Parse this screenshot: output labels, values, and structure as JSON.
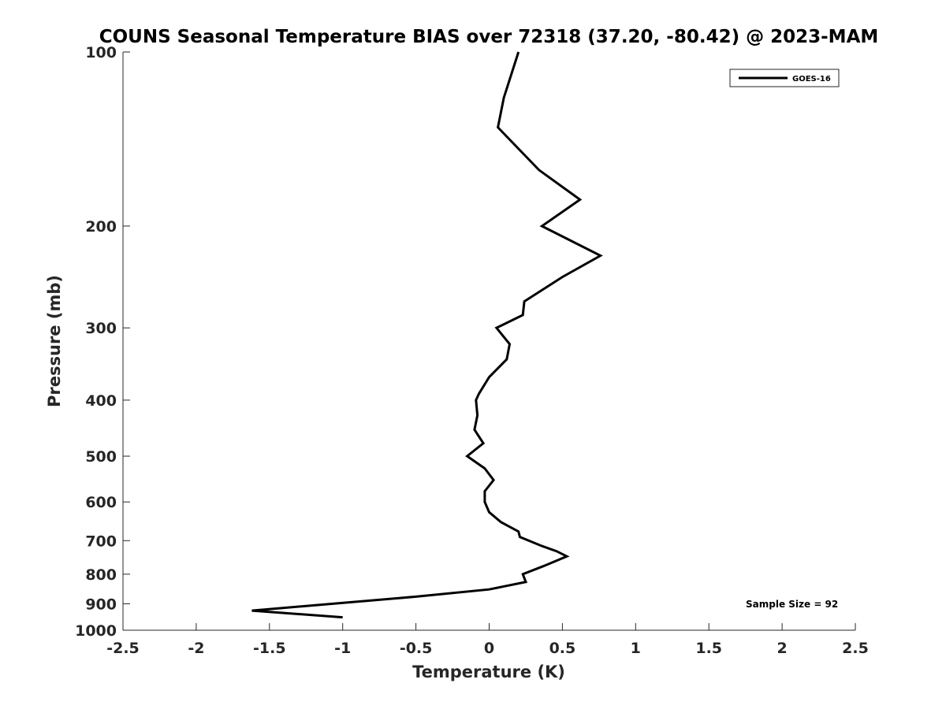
{
  "chart_data": {
    "type": "line",
    "title": "COUNS Seasonal Temperature BIAS over 72318 (37.20, -80.42) @ 2023-MAM",
    "xlabel": "Temperature (K)",
    "ylabel": "Pressure (mb)",
    "xlim": [
      -2.5,
      2.5
    ],
    "ylim": [
      1000,
      100
    ],
    "y_scale": "log",
    "y_reversed": true,
    "x_ticks": [
      "-2.5",
      "-2",
      "-1.5",
      "-1",
      "-0.5",
      "0",
      "0.5",
      "1",
      "1.5",
      "2",
      "2.5"
    ],
    "x_tick_values": [
      -2.5,
      -2,
      -1.5,
      -1,
      -0.5,
      0,
      0.5,
      1,
      1.5,
      2,
      2.5
    ],
    "y_ticks": [
      "100",
      "200",
      "300",
      "400",
      "500",
      "600",
      "700",
      "800",
      "900",
      "1000"
    ],
    "y_tick_values": [
      100,
      200,
      300,
      400,
      500,
      600,
      700,
      800,
      900,
      1000
    ],
    "grid": false,
    "legend_position": "top-right",
    "series": [
      {
        "name": "GOES-16",
        "color": "#000000",
        "points": [
          {
            "x": 0.2,
            "p": 100
          },
          {
            "x": 0.1,
            "p": 120
          },
          {
            "x": 0.06,
            "p": 135
          },
          {
            "x": 0.34,
            "p": 160
          },
          {
            "x": 0.62,
            "p": 180
          },
          {
            "x": 0.36,
            "p": 200
          },
          {
            "x": 0.76,
            "p": 225
          },
          {
            "x": 0.5,
            "p": 245
          },
          {
            "x": 0.24,
            "p": 270
          },
          {
            "x": 0.23,
            "p": 285
          },
          {
            "x": 0.05,
            "p": 300
          },
          {
            "x": 0.14,
            "p": 320
          },
          {
            "x": 0.12,
            "p": 340
          },
          {
            "x": 0.0,
            "p": 365
          },
          {
            "x": -0.07,
            "p": 390
          },
          {
            "x": -0.09,
            "p": 400
          },
          {
            "x": -0.08,
            "p": 425
          },
          {
            "x": -0.1,
            "p": 450
          },
          {
            "x": -0.04,
            "p": 475
          },
          {
            "x": -0.15,
            "p": 500
          },
          {
            "x": -0.03,
            "p": 525
          },
          {
            "x": 0.03,
            "p": 550
          },
          {
            "x": -0.03,
            "p": 575
          },
          {
            "x": -0.03,
            "p": 600
          },
          {
            "x": 0.0,
            "p": 625
          },
          {
            "x": 0.08,
            "p": 650
          },
          {
            "x": 0.2,
            "p": 675
          },
          {
            "x": 0.21,
            "p": 690
          },
          {
            "x": 0.36,
            "p": 715
          },
          {
            "x": 0.46,
            "p": 730
          },
          {
            "x": 0.53,
            "p": 745
          },
          {
            "x": 0.37,
            "p": 775
          },
          {
            "x": 0.23,
            "p": 800
          },
          {
            "x": 0.25,
            "p": 825
          },
          {
            "x": 0.0,
            "p": 850
          },
          {
            "x": -0.5,
            "p": 875
          },
          {
            "x": -1.62,
            "p": 925
          },
          {
            "x": -1.0,
            "p": 950
          }
        ]
      }
    ],
    "annotations": [
      {
        "text": "Sample Size = 92",
        "position": "bottom-right"
      }
    ]
  }
}
